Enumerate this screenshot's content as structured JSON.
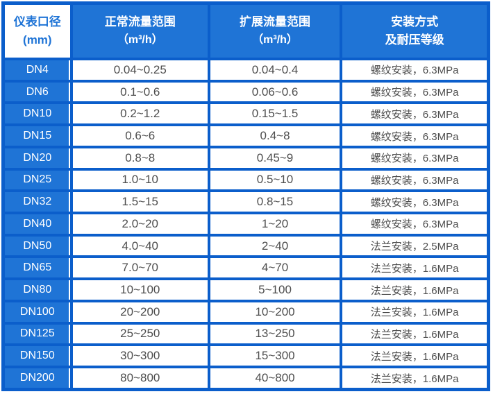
{
  "colors": {
    "grid_border_blue": "#0b5ecb",
    "cell_fill_blue": "#1f74d6",
    "header_corner_bg": "#ffffff",
    "header_corner_text": "#1f74d6",
    "data_text": "#4d4d4d"
  },
  "table": {
    "headers": {
      "diameter": {
        "line1": "仪表口径",
        "line2": "(mm)"
      },
      "normal_range": {
        "line1": "正常流量范围",
        "line2": "（m³/h）"
      },
      "extended_range": {
        "line1": "扩展流量范围",
        "line2": "（m³/h）"
      },
      "installation": {
        "line1": "安装方式",
        "line2": "及耐压等级"
      }
    },
    "rows": [
      {
        "dn": "DN4",
        "normal": "0.04~0.25",
        "extended": "0.04~0.4",
        "install": "螺纹安装，6.3MPa"
      },
      {
        "dn": "DN6",
        "normal": "0.1~0.6",
        "extended": "0.06~0.6",
        "install": "螺纹安装，6.3MPa"
      },
      {
        "dn": "DN10",
        "normal": "0.2~1.2",
        "extended": "0.15~1.5",
        "install": "螺纹安装，6.3MPa"
      },
      {
        "dn": "DN15",
        "normal": "0.6~6",
        "extended": "0.4~8",
        "install": "螺纹安装，6.3MPa"
      },
      {
        "dn": "DN20",
        "normal": "0.8~8",
        "extended": "0.45~9",
        "install": "螺纹安装，6.3MPa"
      },
      {
        "dn": "DN25",
        "normal": "1.0~10",
        "extended": "0.5~10",
        "install": "螺纹安装，6.3MPa"
      },
      {
        "dn": "DN32",
        "normal": "1.5~15",
        "extended": "0.8~15",
        "install": "螺纹安装，6.3MPa"
      },
      {
        "dn": "DN40",
        "normal": "2.0~20",
        "extended": "1~20",
        "install": "螺纹安装，6.3MPa"
      },
      {
        "dn": "DN50",
        "normal": "4.0~40",
        "extended": "2~40",
        "install": "法兰安装，2.5MPa"
      },
      {
        "dn": "DN65",
        "normal": "7.0~70",
        "extended": "4~70",
        "install": "法兰安装，1.6MPa"
      },
      {
        "dn": "DN80",
        "normal": "10~100",
        "extended": "5~100",
        "install": "法兰安装，1.6MPa"
      },
      {
        "dn": "DN100",
        "normal": "20~200",
        "extended": "10~200",
        "install": "法兰安装，1.6MPa"
      },
      {
        "dn": "DN125",
        "normal": "25~250",
        "extended": "13~250",
        "install": "法兰安装，1.6MPa"
      },
      {
        "dn": "DN150",
        "normal": "30~300",
        "extended": "15~300",
        "install": "法兰安装，1.6MPa"
      },
      {
        "dn": "DN200",
        "normal": "80~800",
        "extended": "40~800",
        "install": "法兰安装，1.6MPa"
      }
    ]
  }
}
